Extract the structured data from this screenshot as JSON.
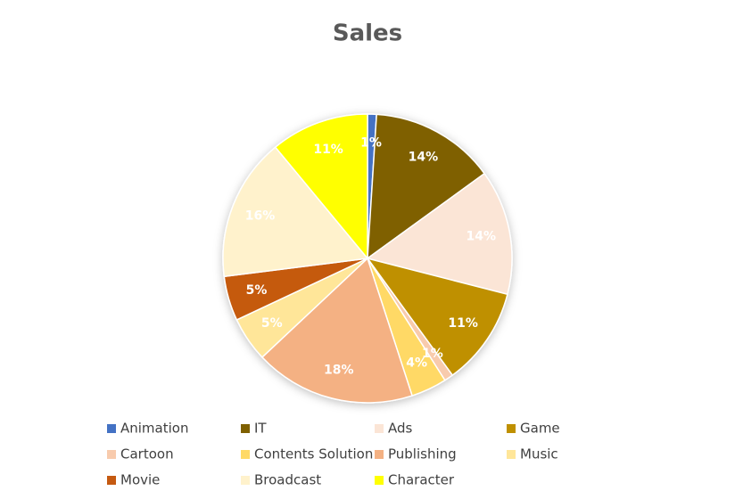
{
  "chart_data": {
    "type": "pie",
    "title": "Sales",
    "categories": [
      "Animation",
      "IT",
      "Ads",
      "Game",
      "Cartoon",
      "Contents Solution",
      "Publishing",
      "Music",
      "Movie",
      "Broadcast",
      "Character"
    ],
    "values": [
      1,
      14,
      14,
      11,
      1,
      4,
      18,
      5,
      5,
      16,
      11
    ],
    "value_labels": [
      "1%",
      "14%",
      "14%",
      "11%",
      "1%",
      "4%",
      "18%",
      "5%",
      "5%",
      "16%",
      "11%"
    ],
    "colors": [
      "#4472c4",
      "#7f6000",
      "#fbe5d6",
      "#bf9000",
      "#f8cbad",
      "#ffd966",
      "#f4b183",
      "#ffe699",
      "#c55a11",
      "#fff2cc",
      "#ffff00"
    ],
    "legend": "bottom"
  }
}
